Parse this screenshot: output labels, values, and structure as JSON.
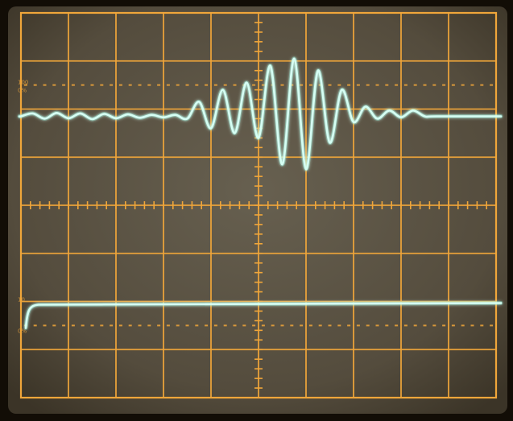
{
  "scope": {
    "graticule": {
      "columns": 10,
      "rows": 8,
      "minor_ticks_per_division": 5
    },
    "colors": {
      "bezel": "#120d06",
      "screen": "#5a5344",
      "graticule": "#f0a63a",
      "trace": "#d6fff4",
      "trace_glow": "#7ef3d9"
    },
    "channel_markers": [
      "100",
      "0%",
      "10",
      "0%"
    ],
    "traces": [
      {
        "name": "upper-trace",
        "baseline_div": 2.15,
        "start_div": 0.0,
        "description_shape": "damped-burst",
        "samples": [
          [
            0.0,
            0.0
          ],
          [
            0.25,
            0.06
          ],
          [
            0.5,
            -0.05
          ],
          [
            0.75,
            0.07
          ],
          [
            1.0,
            -0.04
          ],
          [
            1.25,
            0.06
          ],
          [
            1.5,
            -0.06
          ],
          [
            1.75,
            0.05
          ],
          [
            2.0,
            -0.04
          ],
          [
            2.25,
            0.04
          ],
          [
            2.5,
            -0.03
          ],
          [
            2.75,
            0.03
          ],
          [
            3.0,
            -0.02
          ],
          [
            3.25,
            0.03
          ],
          [
            3.5,
            -0.05
          ],
          [
            3.75,
            0.3
          ],
          [
            4.0,
            -0.25
          ],
          [
            4.25,
            0.55
          ],
          [
            4.5,
            -0.35
          ],
          [
            4.75,
            0.7
          ],
          [
            5.0,
            -0.45
          ],
          [
            5.25,
            1.05
          ],
          [
            5.5,
            -1.0
          ],
          [
            5.75,
            1.2
          ],
          [
            6.0,
            -1.1
          ],
          [
            6.25,
            0.95
          ],
          [
            6.5,
            -0.55
          ],
          [
            6.75,
            0.55
          ],
          [
            7.0,
            -0.12
          ],
          [
            7.25,
            0.2
          ],
          [
            7.5,
            -0.05
          ],
          [
            7.75,
            0.12
          ],
          [
            8.0,
            -0.02
          ],
          [
            8.25,
            0.12
          ],
          [
            8.5,
            0.0
          ],
          [
            8.75,
            0.0
          ]
        ]
      },
      {
        "name": "lower-trace",
        "baseline_div": 6.05,
        "description_shape": "step-rise"
      }
    ]
  }
}
